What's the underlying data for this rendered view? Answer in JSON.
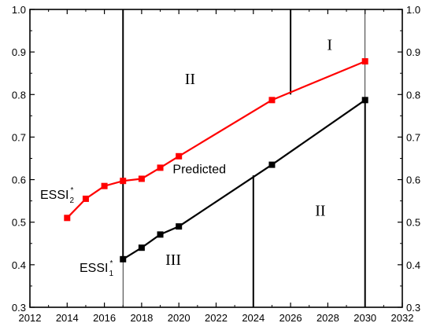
{
  "chart_data": {
    "type": "line",
    "title": "",
    "xlabel": "",
    "ylabel": "",
    "xlim": [
      2012,
      2032
    ],
    "ylim": [
      0.3,
      1.0
    ],
    "x_ticks": [
      2012,
      2014,
      2016,
      2018,
      2020,
      2022,
      2024,
      2026,
      2028,
      2030,
      2032
    ],
    "x_tick_labels": [
      "2012",
      "2014",
      "2016",
      "2018",
      "2020",
      "2022",
      "2024",
      "2026",
      "2028",
      "2030",
      "2032"
    ],
    "y_ticks": [
      0.3,
      0.4,
      0.5,
      0.6,
      0.7,
      0.8,
      0.9,
      1.0
    ],
    "y_tick_labels": [
      "0.3",
      "0.4",
      "0.5",
      "0.6",
      "0.7",
      "0.8",
      "0.9",
      "1.0"
    ],
    "right_axis_mirrored": true,
    "grid": false,
    "series": [
      {
        "label_main": "ESSI",
        "label_sub": "2",
        "label_sup": "*",
        "color": "#ff0000",
        "marker": "square",
        "points": [
          [
            2014,
            0.51
          ],
          [
            2015,
            0.555
          ],
          [
            2016,
            0.585
          ],
          [
            2017,
            0.597
          ],
          [
            2018,
            0.602
          ],
          [
            2019,
            0.628
          ],
          [
            2020,
            0.655
          ],
          [
            2025,
            0.787
          ],
          [
            2030,
            0.878
          ]
        ]
      },
      {
        "label_main": "ESSI",
        "label_sub": "1",
        "label_sup": "*",
        "color": "#000000",
        "marker": "square",
        "points": [
          [
            2017,
            0.413
          ],
          [
            2018,
            0.44
          ],
          [
            2019,
            0.471
          ],
          [
            2020,
            0.49
          ],
          [
            2025,
            0.635
          ],
          [
            2030,
            0.787
          ]
        ]
      }
    ],
    "vertical_lines": [
      {
        "x": 2017,
        "y_from": 0.3,
        "y_to": 0.413,
        "weight": "thin"
      },
      {
        "x": 2017,
        "y_from": 0.413,
        "y_to": 1.0,
        "weight": "bold"
      },
      {
        "x": 2024,
        "y_from": 0.3,
        "y_to": 0.61,
        "weight": "bold"
      },
      {
        "x": 2026,
        "y_from": 0.8,
        "y_to": 1.0,
        "weight": "bold"
      },
      {
        "x": 2030,
        "y_from": 0.3,
        "y_to": 0.787,
        "weight": "bold"
      },
      {
        "x": 2030,
        "y_from": 0.787,
        "y_to": 1.0,
        "weight": "thin"
      }
    ],
    "annotations": [
      {
        "id": "predicted",
        "text": "Predicted",
        "x": 2021.1,
        "y": 0.615,
        "kind": "plain"
      },
      {
        "id": "region-I",
        "text": "I",
        "x": 2028.1,
        "y": 0.905,
        "kind": "roman"
      },
      {
        "id": "region-II-top",
        "text": "II",
        "x": 2020.6,
        "y": 0.825,
        "kind": "roman"
      },
      {
        "id": "region-II-bottom",
        "text": "II",
        "x": 2027.6,
        "y": 0.515,
        "kind": "roman"
      },
      {
        "id": "region-III",
        "text": "III",
        "x": 2019.7,
        "y": 0.4,
        "kind": "roman"
      }
    ]
  }
}
